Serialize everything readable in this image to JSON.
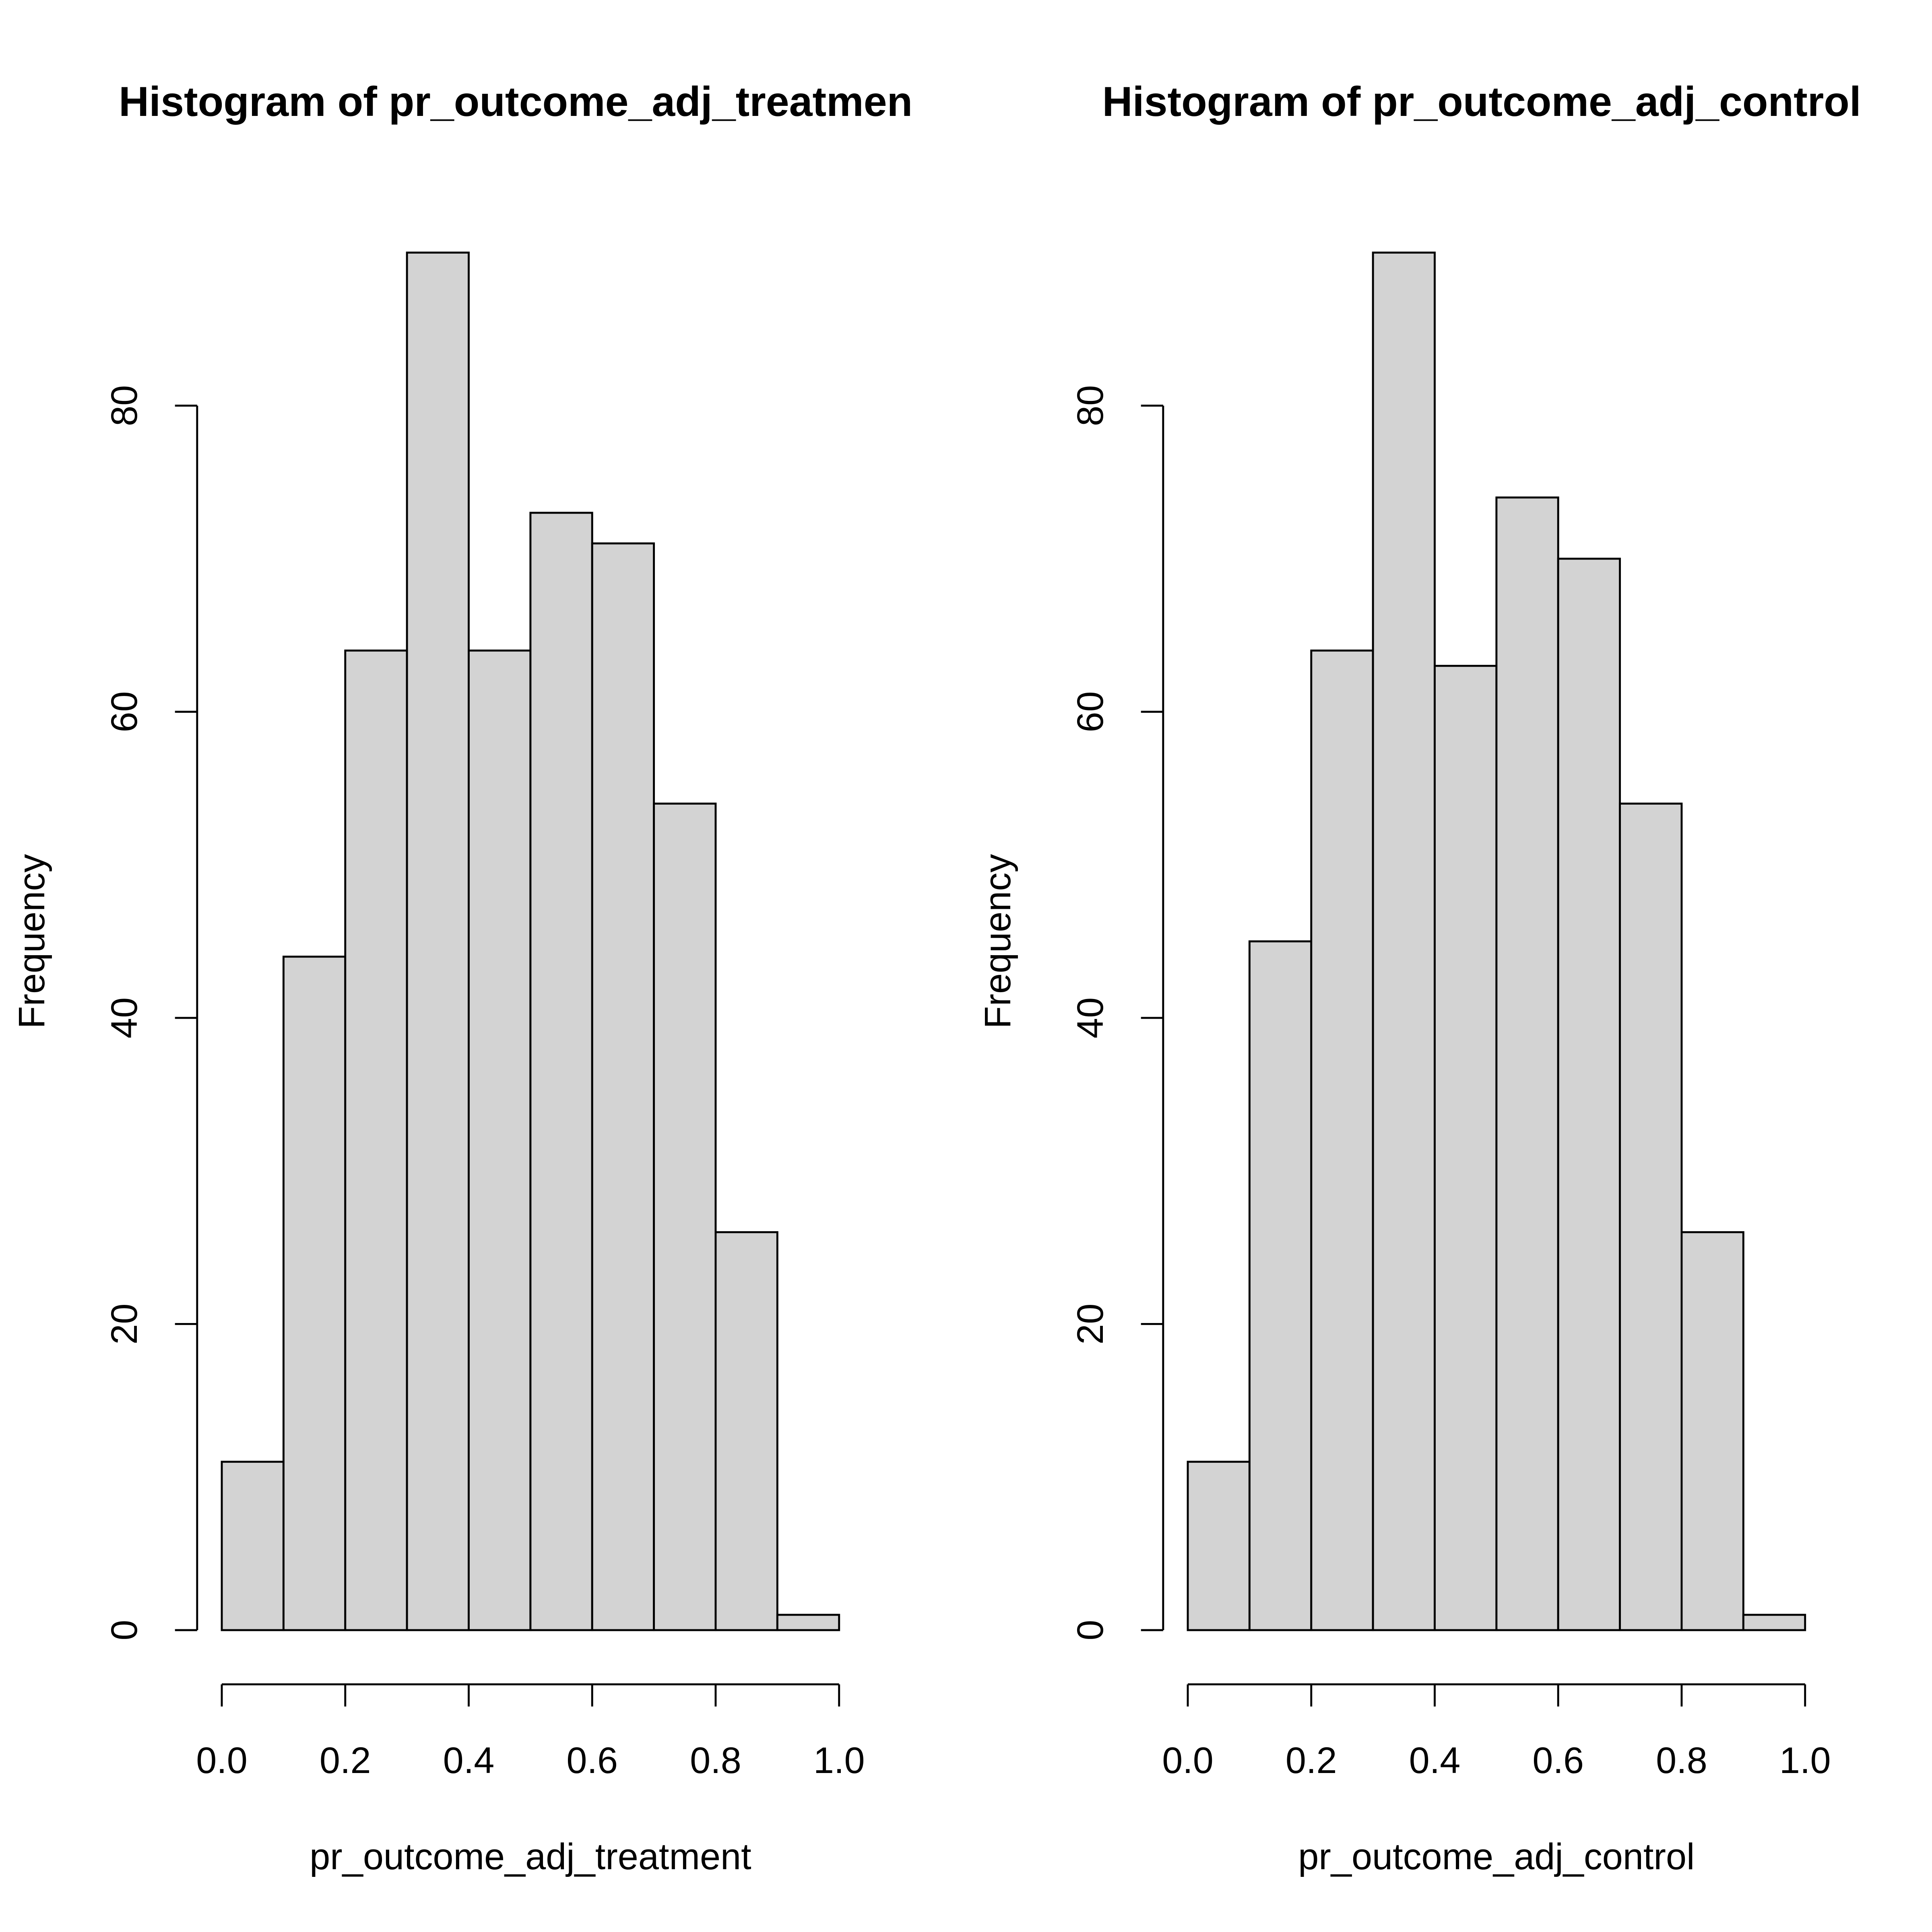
{
  "chart_data": [
    {
      "type": "histogram",
      "title": "Histogram of pr_outcome_adj_treatmen",
      "x_label": "pr_outcome_adj_treatment",
      "y_label": "Frequency",
      "bins": [
        0,
        0.1,
        0.2,
        0.3,
        0.4,
        0.5,
        0.6,
        0.7,
        0.8,
        0.9,
        1
      ],
      "counts": [
        11,
        44,
        64,
        90,
        64,
        73,
        71,
        54,
        26,
        1
      ],
      "color": "#d3d3d3",
      "xlim": [
        0,
        1
      ],
      "xticks": [
        {
          "value": 0,
          "label": "0.0"
        },
        0.2,
        0.4,
        0.6,
        0.8,
        {
          "value": 1,
          "label": "1.0"
        }
      ],
      "ylim": [
        0,
        90
      ],
      "yticks": [
        0,
        20,
        40,
        60,
        80
      ]
    },
    {
      "type": "histogram",
      "title": "Histogram of pr_outcome_adj_control",
      "x_label": "pr_outcome_adj_control",
      "y_label": "Frequency",
      "bins": [
        0,
        0.1,
        0.2,
        0.3,
        0.4,
        0.5,
        0.6,
        0.7,
        0.8,
        0.9,
        1
      ],
      "counts": [
        11,
        45,
        64,
        90,
        63,
        74,
        70,
        54,
        26,
        1
      ],
      "color": "#d3d3d3",
      "xlim": [
        0,
        1
      ],
      "xticks": [
        {
          "value": 0,
          "label": "0.0"
        },
        0.2,
        0.4,
        0.6,
        0.8,
        {
          "value": 1,
          "label": "1.0"
        }
      ],
      "ylim": [
        0,
        90
      ],
      "yticks": [
        0,
        20,
        40,
        60,
        80
      ]
    }
  ]
}
